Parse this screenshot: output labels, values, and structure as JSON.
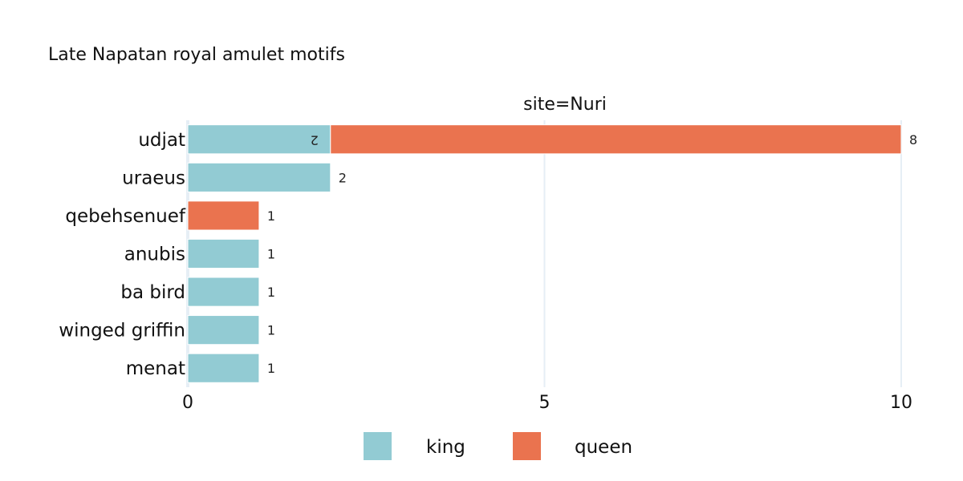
{
  "chart_data": {
    "type": "bar",
    "orientation": "horizontal",
    "barmode": "stack",
    "title": "Late Napatan royal amulet motifs",
    "facet_label": "site=Nuri",
    "categories": [
      "udjat",
      "uraeus",
      "qebehsenuef",
      "anubis",
      "ba bird",
      "winged griffin",
      "menat"
    ],
    "series": [
      {
        "name": "king",
        "color": "#92cbd3",
        "values": [
          2,
          2,
          0,
          1,
          1,
          1,
          1
        ]
      },
      {
        "name": "queen",
        "color": "#ea734f",
        "values": [
          8,
          0,
          1,
          0,
          0,
          0,
          0
        ]
      }
    ],
    "xlim": [
      0,
      10
    ],
    "xticks": [
      0,
      5,
      10
    ],
    "grid": true,
    "legend_position": "bottom-center"
  }
}
